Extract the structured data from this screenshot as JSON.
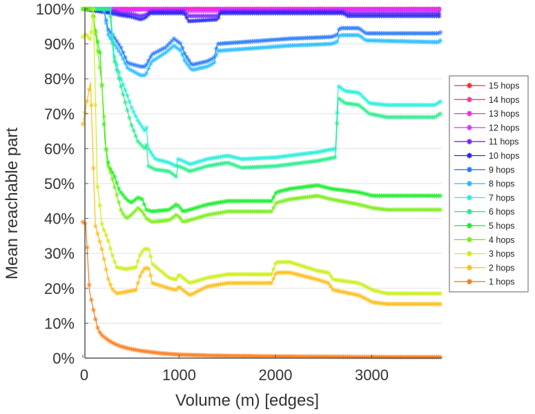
{
  "chart_data": {
    "type": "line",
    "title": "",
    "xlabel": "Volume (m) [edges]",
    "ylabel": "Mean reachable part",
    "xlim": [
      0,
      3700
    ],
    "ylim": [
      0,
      100
    ],
    "xticks": [
      0,
      1000,
      2000,
      3000
    ],
    "xtick_labels": [
      "0",
      "1000",
      "2000",
      "3000"
    ],
    "yticks": [
      0,
      10,
      20,
      30,
      40,
      50,
      60,
      70,
      80,
      90,
      100
    ],
    "ytick_labels": [
      "0%",
      "10%",
      "20%",
      "30%",
      "40%",
      "50%",
      "60%",
      "70%",
      "80%",
      "90%",
      "100%"
    ],
    "grid": "horizontal",
    "legend_position": "right",
    "marker": "asterisk",
    "series": [
      {
        "name": "15 hops",
        "color": "#ff2a2a",
        "x": [
          0,
          3700
        ],
        "y": [
          100,
          100
        ]
      },
      {
        "name": "14 hops",
        "color": "#ff3399",
        "x": [
          0,
          3700
        ],
        "y": [
          100,
          100
        ]
      },
      {
        "name": "13 hops",
        "color": "#ff22dd",
        "x": [
          0,
          3700
        ],
        "y": [
          100,
          100
        ]
      },
      {
        "name": "12 hops",
        "color": "#dd33ff",
        "x": [
          0,
          300,
          450,
          620,
          1050,
          1100,
          1400,
          1430,
          2700,
          2750,
          3700
        ],
        "y": [
          100,
          99.9,
          99.5,
          99.8,
          99.9,
          99.4,
          99.4,
          99.9,
          99.9,
          99.8,
          99.8
        ]
      },
      {
        "name": "11 hops",
        "color": "#7722ff",
        "x": [
          0,
          300,
          400,
          500,
          600,
          650,
          700,
          1050,
          1100,
          1400,
          1430,
          2700,
          2750,
          3700
        ],
        "y": [
          100,
          99.5,
          98.8,
          98.6,
          98.0,
          98.3,
          99.3,
          99.4,
          98.0,
          98.0,
          99.3,
          99.3,
          98.8,
          98.8
        ]
      },
      {
        "name": "10 hops",
        "color": "#2222ee",
        "x": [
          0,
          250,
          400,
          500,
          600,
          650,
          700,
          1050,
          1100,
          1400,
          1430,
          2700,
          2750,
          3700
        ],
        "y": [
          100,
          99.0,
          98.2,
          97.8,
          97.0,
          97.5,
          98.8,
          98.8,
          96.5,
          97.0,
          98.8,
          98.8,
          98.0,
          98.0
        ]
      },
      {
        "name": "9 hops",
        "color": "#2277ff",
        "x": [
          0,
          215,
          265,
          300,
          395,
          466,
          600,
          650,
          717,
          860,
          946,
          1018,
          1060,
          1133,
          1290,
          1362,
          1398,
          1649,
          2150,
          2580,
          2638,
          2667,
          2867,
          2939,
          3692,
          3713
        ],
        "y": [
          100,
          100,
          94,
          93,
          89,
          84.5,
          83.5,
          83.5,
          87,
          89,
          91.5,
          90,
          87,
          84,
          85,
          86,
          90,
          90.5,
          91.5,
          92,
          92.5,
          94.5,
          94.5,
          93,
          93,
          93.3
        ]
      },
      {
        "name": "8 hops",
        "color": "#22bbff",
        "x": [
          0,
          215,
          265,
          300,
          395,
          466,
          600,
          650,
          717,
          860,
          946,
          1018,
          1060,
          1133,
          1290,
          1362,
          1398,
          1649,
          2150,
          2580,
          2638,
          2667,
          2867,
          2939,
          3692,
          3713
        ],
        "y": [
          100,
          100,
          92.5,
          91,
          87,
          83,
          81,
          81,
          85,
          87.5,
          89.5,
          88,
          85,
          82.5,
          83.5,
          84.5,
          88,
          88.5,
          89.5,
          90,
          90.5,
          92.5,
          92.5,
          91,
          90.5,
          91
        ]
      },
      {
        "name": "7 hops",
        "color": "#22eedd",
        "x": [
          0,
          287,
          323,
          394,
          452,
          502,
          573,
          645,
          660,
          681,
          753,
          896,
          968,
          989,
          1039,
          1111,
          1290,
          1505,
          1649,
          2007,
          2150,
          2437,
          2624,
          2652,
          2724,
          2867,
          2975,
          3154,
          3656,
          3713
        ],
        "y": [
          100,
          100,
          87,
          80,
          76,
          72,
          68,
          65,
          66,
          60,
          57,
          56,
          55,
          57,
          56.5,
          55.5,
          57,
          58,
          57,
          57.5,
          58,
          59,
          60,
          78,
          76.5,
          76,
          73,
          72.5,
          72.5,
          73.5
        ]
      },
      {
        "name": "6 hops",
        "color": "#22ee88",
        "x": [
          0,
          280,
          320,
          394,
          452,
          502,
          573,
          645,
          660,
          681,
          753,
          896,
          968,
          989,
          1039,
          1111,
          1290,
          1505,
          1649,
          2007,
          2150,
          2437,
          2624,
          2652,
          2724,
          2867,
          2975,
          3154,
          3656,
          3713
        ],
        "y": [
          100,
          100,
          86,
          78,
          72,
          67,
          62,
          60,
          61,
          55,
          54,
          53.5,
          52,
          55,
          54.5,
          53.5,
          55,
          56,
          54.5,
          55,
          55.5,
          56.5,
          57.5,
          74.5,
          73,
          72.5,
          70,
          69,
          69,
          70
        ]
      },
      {
        "name": "5 hops",
        "color": "#11ee22",
        "x": [
          0,
          100,
          130,
          180,
          230,
          270,
          330,
          380,
          452,
          502,
          573,
          617,
          660,
          717,
          896,
          968,
          1000,
          1039,
          1111,
          1290,
          1505,
          1649,
          1960,
          2007,
          2150,
          2437,
          2580,
          2867,
          3010,
          3154,
          3713
        ],
        "y": [
          100,
          100,
          94,
          87,
          62,
          55,
          52,
          48,
          45.5,
          44.5,
          46,
          45.5,
          42.5,
          42,
          42.5,
          44,
          43.5,
          42,
          42.5,
          44,
          45,
          45,
          45,
          47.5,
          48.5,
          49.5,
          48.5,
          47.5,
          46.5,
          46.5,
          46.5
        ]
      },
      {
        "name": "4 hops",
        "color": "#77ee11",
        "x": [
          0,
          100,
          140,
          200,
          250,
          290,
          330,
          400,
          452,
          502,
          573,
          617,
          660,
          717,
          896,
          968,
          1000,
          1039,
          1111,
          1290,
          1505,
          1649,
          1960,
          2007,
          2150,
          2437,
          2580,
          2867,
          3010,
          3154,
          3713
        ],
        "y": [
          100,
          100,
          91,
          78,
          56,
          53,
          49,
          42,
          40,
          41,
          43,
          42,
          40,
          39,
          39.5,
          41,
          40.5,
          39,
          39.5,
          41,
          42,
          42,
          42,
          44.5,
          45.5,
          46.5,
          45.5,
          44,
          43,
          42.5,
          42.5
        ]
      },
      {
        "name": "3 hops",
        "color": "#ccee11",
        "x": [
          0,
          30,
          80,
          110,
          150,
          200,
          260,
          300,
          350,
          450,
          550,
          600,
          650,
          690,
          720,
          896,
          968,
          1000,
          1039,
          1111,
          1290,
          1505,
          1960,
          2007,
          2150,
          2437,
          2550,
          2600,
          2867,
          3010,
          3154,
          3713
        ],
        "y": [
          92,
          93,
          91,
          100,
          50,
          38,
          34,
          30,
          26,
          25.5,
          26,
          30,
          31.5,
          31,
          27,
          23,
          22.5,
          24,
          23,
          21.5,
          23,
          24,
          24,
          27.5,
          27.5,
          25,
          24.5,
          22.5,
          21.5,
          19.5,
          18.5,
          18.5
        ]
      },
      {
        "name": "2 hops",
        "color": "#ffbb11",
        "x": [
          0,
          30,
          80,
          130,
          200,
          260,
          300,
          350,
          450,
          550,
          600,
          650,
          690,
          720,
          896,
          968,
          1000,
          1039,
          1111,
          1290,
          1505,
          1960,
          2007,
          2150,
          2437,
          2550,
          2600,
          2867,
          3010,
          3154,
          3713
        ],
        "y": [
          67,
          71.5,
          79,
          38,
          31,
          23,
          20,
          18.5,
          19,
          19.5,
          24,
          26,
          25.5,
          21.5,
          20,
          19.5,
          20.5,
          19.5,
          18,
          20.5,
          21.5,
          21.5,
          24.5,
          24.5,
          22.5,
          21.5,
          19.5,
          18,
          16,
          15.5,
          15.5
        ]
      },
      {
        "name": "1 hops",
        "color": "#ff7711",
        "x": [
          0,
          30,
          70,
          120,
          160,
          200,
          260,
          320,
          400,
          500,
          600,
          800,
          1000,
          1400,
          2000,
          2600,
          3200,
          3713
        ],
        "y": [
          39,
          38.5,
          19,
          12.5,
          8,
          6.5,
          5.2,
          4.2,
          3.3,
          2.6,
          2.1,
          1.4,
          1.0,
          0.7,
          0.5,
          0.4,
          0.3,
          0.3
        ]
      }
    ]
  }
}
